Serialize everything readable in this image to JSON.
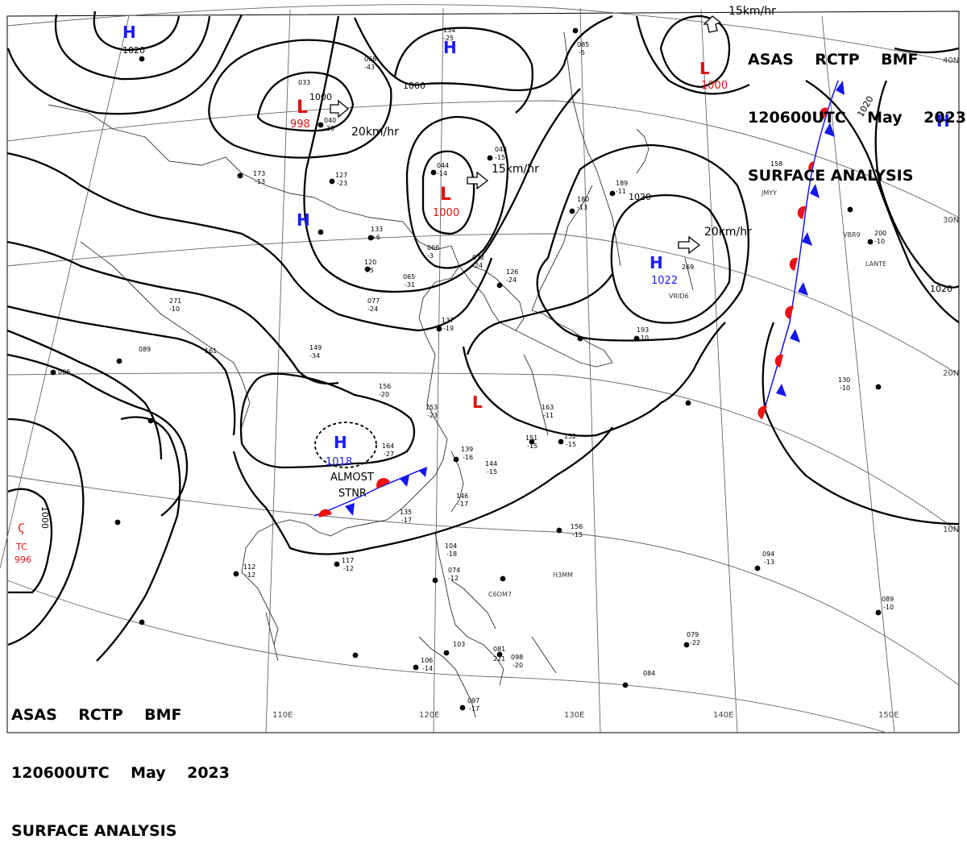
{
  "header": {
    "line1": "ASAS    RCTP    BMF",
    "line2": "120600UTC    May    2023",
    "line3": "SURFACE ANALYSIS"
  },
  "colors": {
    "high": "#1a1aff",
    "low": "#dd1111",
    "warm_front": "#ee1111",
    "cold_front": "#1515ee",
    "isobar": "#000000",
    "coast": "#333333",
    "grid": "#666666"
  },
  "pressure_systems": [
    {
      "type": "H",
      "value": "1020"
    },
    {
      "type": "H",
      "value": ""
    },
    {
      "type": "L",
      "value": "998"
    },
    {
      "type": "L",
      "value": "1000"
    },
    {
      "type": "H",
      "value": ""
    },
    {
      "type": "L",
      "value": "1000"
    },
    {
      "type": "H",
      "value": "1022"
    },
    {
      "type": "H",
      "value": ""
    },
    {
      "type": "H",
      "value": "1018"
    },
    {
      "type": "L",
      "value": ""
    }
  ],
  "tropical_cyclone": {
    "label": "TC",
    "value": "996",
    "isobar": "1000"
  },
  "motion_vectors": [
    "20km/hr",
    "15km/hr",
    "20km/hr",
    "15km/hr"
  ],
  "isobar_labels": [
    "1020",
    "1000",
    "1020",
    "1020",
    "1000"
  ],
  "front_labels": [
    "ALMOST",
    "STNR"
  ],
  "latitude_labels": [
    "40N",
    "30N",
    "20N",
    "10N"
  ],
  "longitude_labels": [
    "110E",
    "120E",
    "130E",
    "140E",
    "150E"
  ],
  "station_codes": [
    "JMYY",
    "VRID6",
    "LANTE",
    "C6OM7",
    "H3MM",
    "VBR9"
  ],
  "station_values": [
    "134",
    "-25",
    "068",
    "-43",
    "033",
    "040",
    "-30",
    "127",
    "-23",
    "133",
    "+6",
    "120",
    "+5",
    "043",
    "-15",
    "044",
    "-14",
    "180",
    "-13",
    "189",
    "-11",
    "158",
    "269",
    "200",
    "-10",
    "271",
    "-10",
    "089",
    "161",
    "066",
    "149",
    "-34",
    "156",
    "-20",
    "153",
    "-23",
    "164",
    "-27",
    "139",
    "-16",
    "144",
    "-15",
    "146",
    "-17",
    "135",
    "-17",
    "117",
    "-12",
    "112",
    "-12",
    "104",
    "-18",
    "074",
    "-12",
    "106",
    "-14",
    "097",
    "-17",
    "098",
    "-20",
    "094",
    "-13",
    "089",
    "-10",
    "079",
    "-22",
    "084",
    "130",
    "-10",
    "163",
    "-11",
    "151",
    "-15",
    "152",
    "-15",
    "193",
    "-10",
    "156",
    "-15",
    "066",
    "-3",
    "072",
    "-24",
    "065",
    "-31",
    "077",
    "-24",
    "126",
    "-24",
    "137",
    "-19",
    "085",
    "-5",
    "173",
    "-13",
    "103",
    "081",
    "221"
  ]
}
